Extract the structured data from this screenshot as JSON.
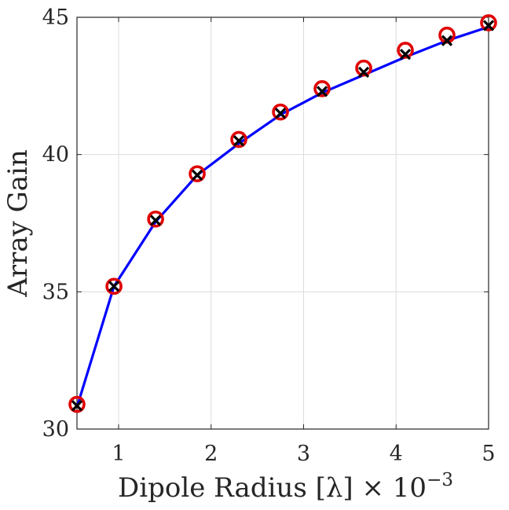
{
  "chart_data": {
    "type": "line",
    "xlabel": "Dipole Radius [λ] × 10",
    "xlabel_exponent": "−3",
    "ylabel": "Array Gain",
    "xlim": [
      0.55,
      5.0
    ],
    "ylim": [
      30,
      45
    ],
    "xticks": [
      1,
      2,
      3,
      4,
      5
    ],
    "yticks": [
      30,
      35,
      40,
      45
    ],
    "grid": true,
    "legend": "none",
    "series": [
      {
        "marker": "line",
        "color": "#0000ff",
        "x": [
          0.55,
          0.95,
          1.4,
          1.85,
          2.3,
          2.75,
          3.2,
          3.65,
          4.1,
          4.55,
          5.0
        ],
        "y": [
          30.8,
          35.2,
          37.55,
          39.25,
          40.4,
          41.45,
          42.25,
          42.9,
          43.55,
          44.15,
          44.65
        ]
      },
      {
        "marker": "circle",
        "color": "#e00000",
        "x": [
          0.55,
          0.95,
          1.4,
          1.85,
          2.3,
          2.75,
          3.2,
          3.65,
          4.1,
          4.55,
          5.0
        ],
        "y": [
          30.9,
          35.2,
          37.65,
          39.3,
          40.55,
          41.55,
          42.4,
          43.15,
          43.8,
          44.35,
          44.8
        ]
      },
      {
        "marker": "x",
        "color": "#000000",
        "x": [
          0.55,
          0.95,
          1.4,
          1.85,
          2.3,
          2.75,
          3.2,
          3.65,
          4.1,
          4.55,
          5.0
        ],
        "y": [
          30.85,
          35.2,
          37.6,
          39.25,
          40.5,
          41.5,
          42.3,
          43.0,
          43.65,
          44.15,
          44.7
        ]
      }
    ]
  }
}
